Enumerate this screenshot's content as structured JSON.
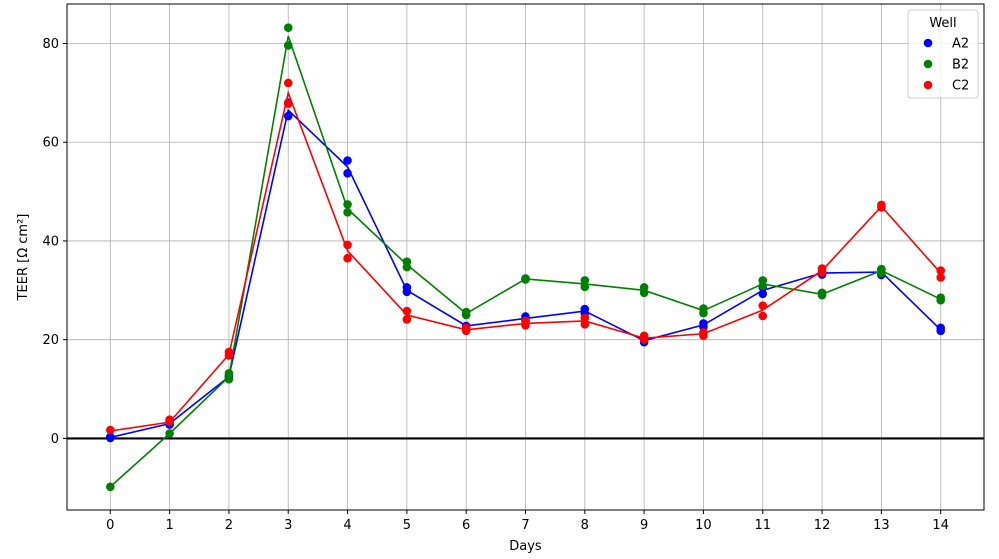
{
  "chart_data": {
    "type": "line",
    "xlabel": "Days",
    "ylabel": "TEER [Ω cm²]",
    "xlim": [
      -0.73,
      14.73
    ],
    "ylim": [
      -14.5,
      88
    ],
    "xticks": [
      0,
      1,
      2,
      3,
      4,
      5,
      6,
      7,
      8,
      9,
      10,
      11,
      12,
      13,
      14
    ],
    "yticks": [
      0,
      20,
      40,
      60,
      80
    ],
    "grid": true,
    "zero_line": true,
    "legend": {
      "title": "Well",
      "placement": "top-right"
    },
    "series": [
      {
        "name": "A2",
        "color": "#0000ff",
        "line": [
          [
            0,
            0.2
          ],
          [
            1,
            3.0
          ],
          [
            2,
            12.5
          ],
          [
            3,
            66.5
          ],
          [
            4,
            55.0
          ],
          [
            5,
            30.0
          ],
          [
            6,
            22.8
          ],
          [
            7,
            24.3
          ],
          [
            8,
            25.8
          ],
          [
            9,
            19.8
          ],
          [
            10,
            23.0
          ],
          [
            11,
            30.0
          ],
          [
            12,
            33.5
          ],
          [
            13,
            33.7
          ],
          [
            14,
            22.0
          ]
        ],
        "points": [
          [
            0,
            0.1
          ],
          [
            0,
            0.3
          ],
          [
            1,
            2.8
          ],
          [
            1,
            3.3
          ],
          [
            2,
            12.3
          ],
          [
            2,
            12.7
          ],
          [
            3,
            65.3
          ],
          [
            3,
            68.0
          ],
          [
            4,
            56.3
          ],
          [
            4,
            53.7
          ],
          [
            5,
            29.7
          ],
          [
            5,
            30.6
          ],
          [
            6,
            22.4
          ],
          [
            6,
            22.8
          ],
          [
            7,
            23.8
          ],
          [
            7,
            24.7
          ],
          [
            8,
            25.3
          ],
          [
            8,
            26.2
          ],
          [
            9,
            19.5
          ],
          [
            9,
            20.1
          ],
          [
            10,
            22.6
          ],
          [
            10,
            23.3
          ],
          [
            11,
            29.3
          ],
          [
            11,
            30.6
          ],
          [
            12,
            33.2
          ],
          [
            12,
            33.8
          ],
          [
            13,
            33.1
          ],
          [
            13,
            34.2
          ],
          [
            14,
            21.8
          ],
          [
            14,
            22.4
          ]
        ]
      },
      {
        "name": "B2",
        "color": "#008000",
        "line": [
          [
            0,
            -9.8
          ],
          [
            1,
            1.0
          ],
          [
            2,
            12.5
          ],
          [
            3,
            81.5
          ],
          [
            4,
            46.5
          ],
          [
            5,
            35.2
          ],
          [
            6,
            25.3
          ],
          [
            7,
            32.3
          ],
          [
            8,
            31.3
          ],
          [
            9,
            30.0
          ],
          [
            10,
            25.9
          ],
          [
            11,
            31.3
          ],
          [
            12,
            29.2
          ],
          [
            13,
            34.0
          ],
          [
            14,
            28.2
          ]
        ],
        "points": [
          [
            0,
            -9.8
          ],
          [
            1,
            1.0
          ],
          [
            2,
            12.0
          ],
          [
            2,
            13.2
          ],
          [
            3,
            83.2
          ],
          [
            3,
            79.6
          ],
          [
            4,
            47.4
          ],
          [
            4,
            45.8
          ],
          [
            5,
            35.8
          ],
          [
            5,
            34.7
          ],
          [
            6,
            25.0
          ],
          [
            6,
            25.6
          ],
          [
            7,
            32.2
          ],
          [
            7,
            32.4
          ],
          [
            8,
            32.0
          ],
          [
            8,
            30.7
          ],
          [
            9,
            30.6
          ],
          [
            9,
            29.5
          ],
          [
            10,
            26.3
          ],
          [
            10,
            25.4
          ],
          [
            11,
            32.0
          ],
          [
            11,
            30.9
          ],
          [
            12,
            29.0
          ],
          [
            12,
            29.5
          ],
          [
            13,
            34.3
          ],
          [
            13,
            33.5
          ],
          [
            14,
            28.0
          ],
          [
            14,
            28.5
          ]
        ]
      },
      {
        "name": "C2",
        "color": "#ff0000",
        "line": [
          [
            0,
            1.5
          ],
          [
            1,
            3.3
          ],
          [
            2,
            17.0
          ],
          [
            3,
            70.0
          ],
          [
            4,
            38.0
          ],
          [
            5,
            25.0
          ],
          [
            6,
            22.0
          ],
          [
            7,
            23.3
          ],
          [
            8,
            23.8
          ],
          [
            9,
            20.3
          ],
          [
            10,
            21.2
          ],
          [
            11,
            26.0
          ],
          [
            12,
            34.0
          ],
          [
            13,
            47.0
          ],
          [
            14,
            33.5
          ]
        ],
        "points": [
          [
            0,
            1.7
          ],
          [
            1,
            3.4
          ],
          [
            1,
            3.8
          ],
          [
            2,
            16.8
          ],
          [
            2,
            17.5
          ],
          [
            3,
            72.0
          ],
          [
            3,
            67.8
          ],
          [
            4,
            39.2
          ],
          [
            4,
            36.5
          ],
          [
            5,
            25.8
          ],
          [
            5,
            24.1
          ],
          [
            6,
            21.8
          ],
          [
            6,
            22.4
          ],
          [
            7,
            22.9
          ],
          [
            7,
            23.8
          ],
          [
            8,
            23.1
          ],
          [
            8,
            24.4
          ],
          [
            9,
            20.0
          ],
          [
            9,
            20.8
          ],
          [
            10,
            20.8
          ],
          [
            10,
            21.5
          ],
          [
            11,
            26.9
          ],
          [
            11,
            24.8
          ],
          [
            12,
            33.6
          ],
          [
            12,
            34.4
          ],
          [
            13,
            46.8
          ],
          [
            13,
            47.3
          ],
          [
            14,
            34.0
          ],
          [
            14,
            32.6
          ]
        ]
      }
    ]
  }
}
